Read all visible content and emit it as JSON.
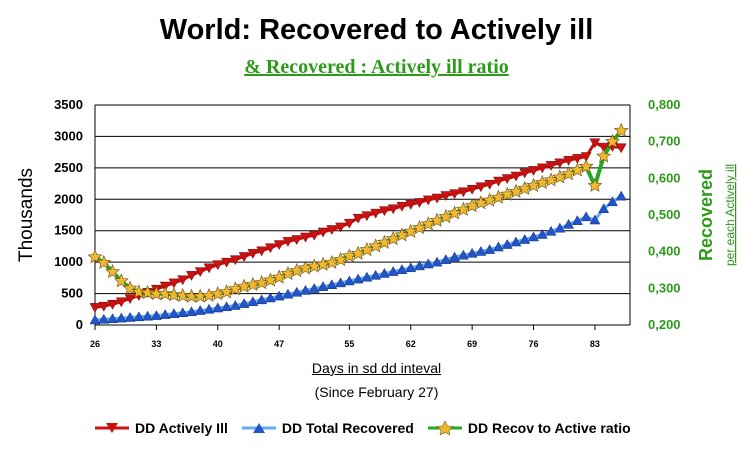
{
  "chart_data": {
    "type": "line",
    "title": "World: Recovered to Actively ill",
    "subtitle": "& Recovered : Actively ill ratio",
    "xlabel": "Days in sd dd inteval",
    "xsublabel": "(Since February 27)",
    "ylabel_left": "Thousands",
    "ylabel_right": "Recovered",
    "ylabel_right_sub": "per each Actively ill",
    "x_ticks": [
      26,
      33,
      40,
      47,
      55,
      62,
      69,
      76,
      83
    ],
    "xlim": [
      26,
      87
    ],
    "ylim_left": [
      0,
      3500
    ],
    "yticks_left": [
      "0",
      "500",
      "1000",
      "1500",
      "2000",
      "2500",
      "3000",
      "3500"
    ],
    "ylim_right": [
      0.2,
      0.8
    ],
    "yticks_right": [
      "0,200",
      "0,300",
      "0,400",
      "0,500",
      "0,600",
      "0,700",
      "0,800"
    ],
    "grid": true,
    "legend_position": "bottom",
    "colors": {
      "actively_ill": "#cc1111",
      "recovered": "#2255cc",
      "ratio": "#22aa22",
      "ratio_marker": "#f0b830",
      "right_axis": "#2e9a1a"
    },
    "series": [
      {
        "name": "DD Actively Ill",
        "axis": "left",
        "x": [
          26,
          27,
          28,
          29,
          30,
          31,
          32,
          33,
          34,
          35,
          36,
          37,
          38,
          39,
          40,
          41,
          42,
          43,
          44,
          45,
          46,
          47,
          48,
          49,
          50,
          51,
          52,
          53,
          54,
          55,
          56,
          57,
          58,
          59,
          60,
          61,
          62,
          63,
          64,
          65,
          66,
          67,
          68,
          69,
          70,
          71,
          72,
          73,
          74,
          75,
          76,
          77,
          78,
          79,
          80,
          81,
          82,
          83,
          84,
          85,
          86
        ],
        "values": [
          280,
          300,
          330,
          370,
          420,
          470,
          520,
          570,
          620,
          670,
          720,
          790,
          850,
          910,
          960,
          1000,
          1040,
          1090,
          1140,
          1180,
          1230,
          1280,
          1330,
          1360,
          1400,
          1430,
          1480,
          1520,
          1560,
          1620,
          1700,
          1740,
          1780,
          1820,
          1850,
          1890,
          1920,
          1950,
          1990,
          2020,
          2060,
          2090,
          2120,
          2160,
          2200,
          2240,
          2290,
          2330,
          2370,
          2420,
          2460,
          2500,
          2540,
          2580,
          2620,
          2650,
          2680,
          2900,
          2830,
          2840,
          2820
        ]
      },
      {
        "name": "DD Total Recovered",
        "axis": "left",
        "x": [
          26,
          27,
          28,
          29,
          30,
          31,
          32,
          33,
          34,
          35,
          36,
          37,
          38,
          39,
          40,
          41,
          42,
          43,
          44,
          45,
          46,
          47,
          48,
          49,
          50,
          51,
          52,
          53,
          54,
          55,
          56,
          57,
          58,
          59,
          60,
          61,
          62,
          63,
          64,
          65,
          66,
          67,
          68,
          69,
          70,
          71,
          72,
          73,
          74,
          75,
          76,
          77,
          78,
          79,
          80,
          81,
          82,
          83,
          84,
          85,
          86
        ],
        "values": [
          80,
          90,
          100,
          110,
          120,
          130,
          140,
          150,
          165,
          180,
          195,
          210,
          230,
          250,
          270,
          290,
          310,
          340,
          370,
          400,
          430,
          460,
          490,
          520,
          550,
          580,
          610,
          640,
          670,
          700,
          730,
          760,
          790,
          820,
          850,
          880,
          910,
          940,
          970,
          1000,
          1040,
          1080,
          1110,
          1140,
          1170,
          1200,
          1240,
          1280,
          1320,
          1360,
          1400,
          1440,
          1490,
          1540,
          1600,
          1660,
          1720,
          1670,
          1850,
          1960,
          2050
        ]
      },
      {
        "name": "DD Recov to Active ratio",
        "axis": "right",
        "x": [
          26,
          27,
          28,
          29,
          30,
          31,
          32,
          33,
          34,
          35,
          36,
          37,
          38,
          39,
          40,
          41,
          42,
          43,
          44,
          45,
          46,
          47,
          48,
          49,
          50,
          51,
          52,
          53,
          54,
          55,
          56,
          57,
          58,
          59,
          60,
          61,
          62,
          63,
          64,
          65,
          66,
          67,
          68,
          69,
          70,
          71,
          72,
          73,
          74,
          75,
          76,
          77,
          78,
          79,
          80,
          81,
          82,
          83,
          84,
          85,
          86
        ],
        "values": [
          0.385,
          0.37,
          0.345,
          0.32,
          0.3,
          0.29,
          0.288,
          0.285,
          0.285,
          0.282,
          0.28,
          0.278,
          0.278,
          0.28,
          0.285,
          0.29,
          0.298,
          0.305,
          0.31,
          0.315,
          0.322,
          0.33,
          0.34,
          0.348,
          0.355,
          0.36,
          0.365,
          0.37,
          0.378,
          0.388,
          0.395,
          0.405,
          0.415,
          0.425,
          0.435,
          0.445,
          0.455,
          0.465,
          0.475,
          0.485,
          0.495,
          0.505,
          0.515,
          0.525,
          0.533,
          0.54,
          0.548,
          0.556,
          0.564,
          0.572,
          0.58,
          0.588,
          0.595,
          0.603,
          0.612,
          0.622,
          0.632,
          0.58,
          0.66,
          0.7,
          0.73
        ]
      }
    ]
  }
}
